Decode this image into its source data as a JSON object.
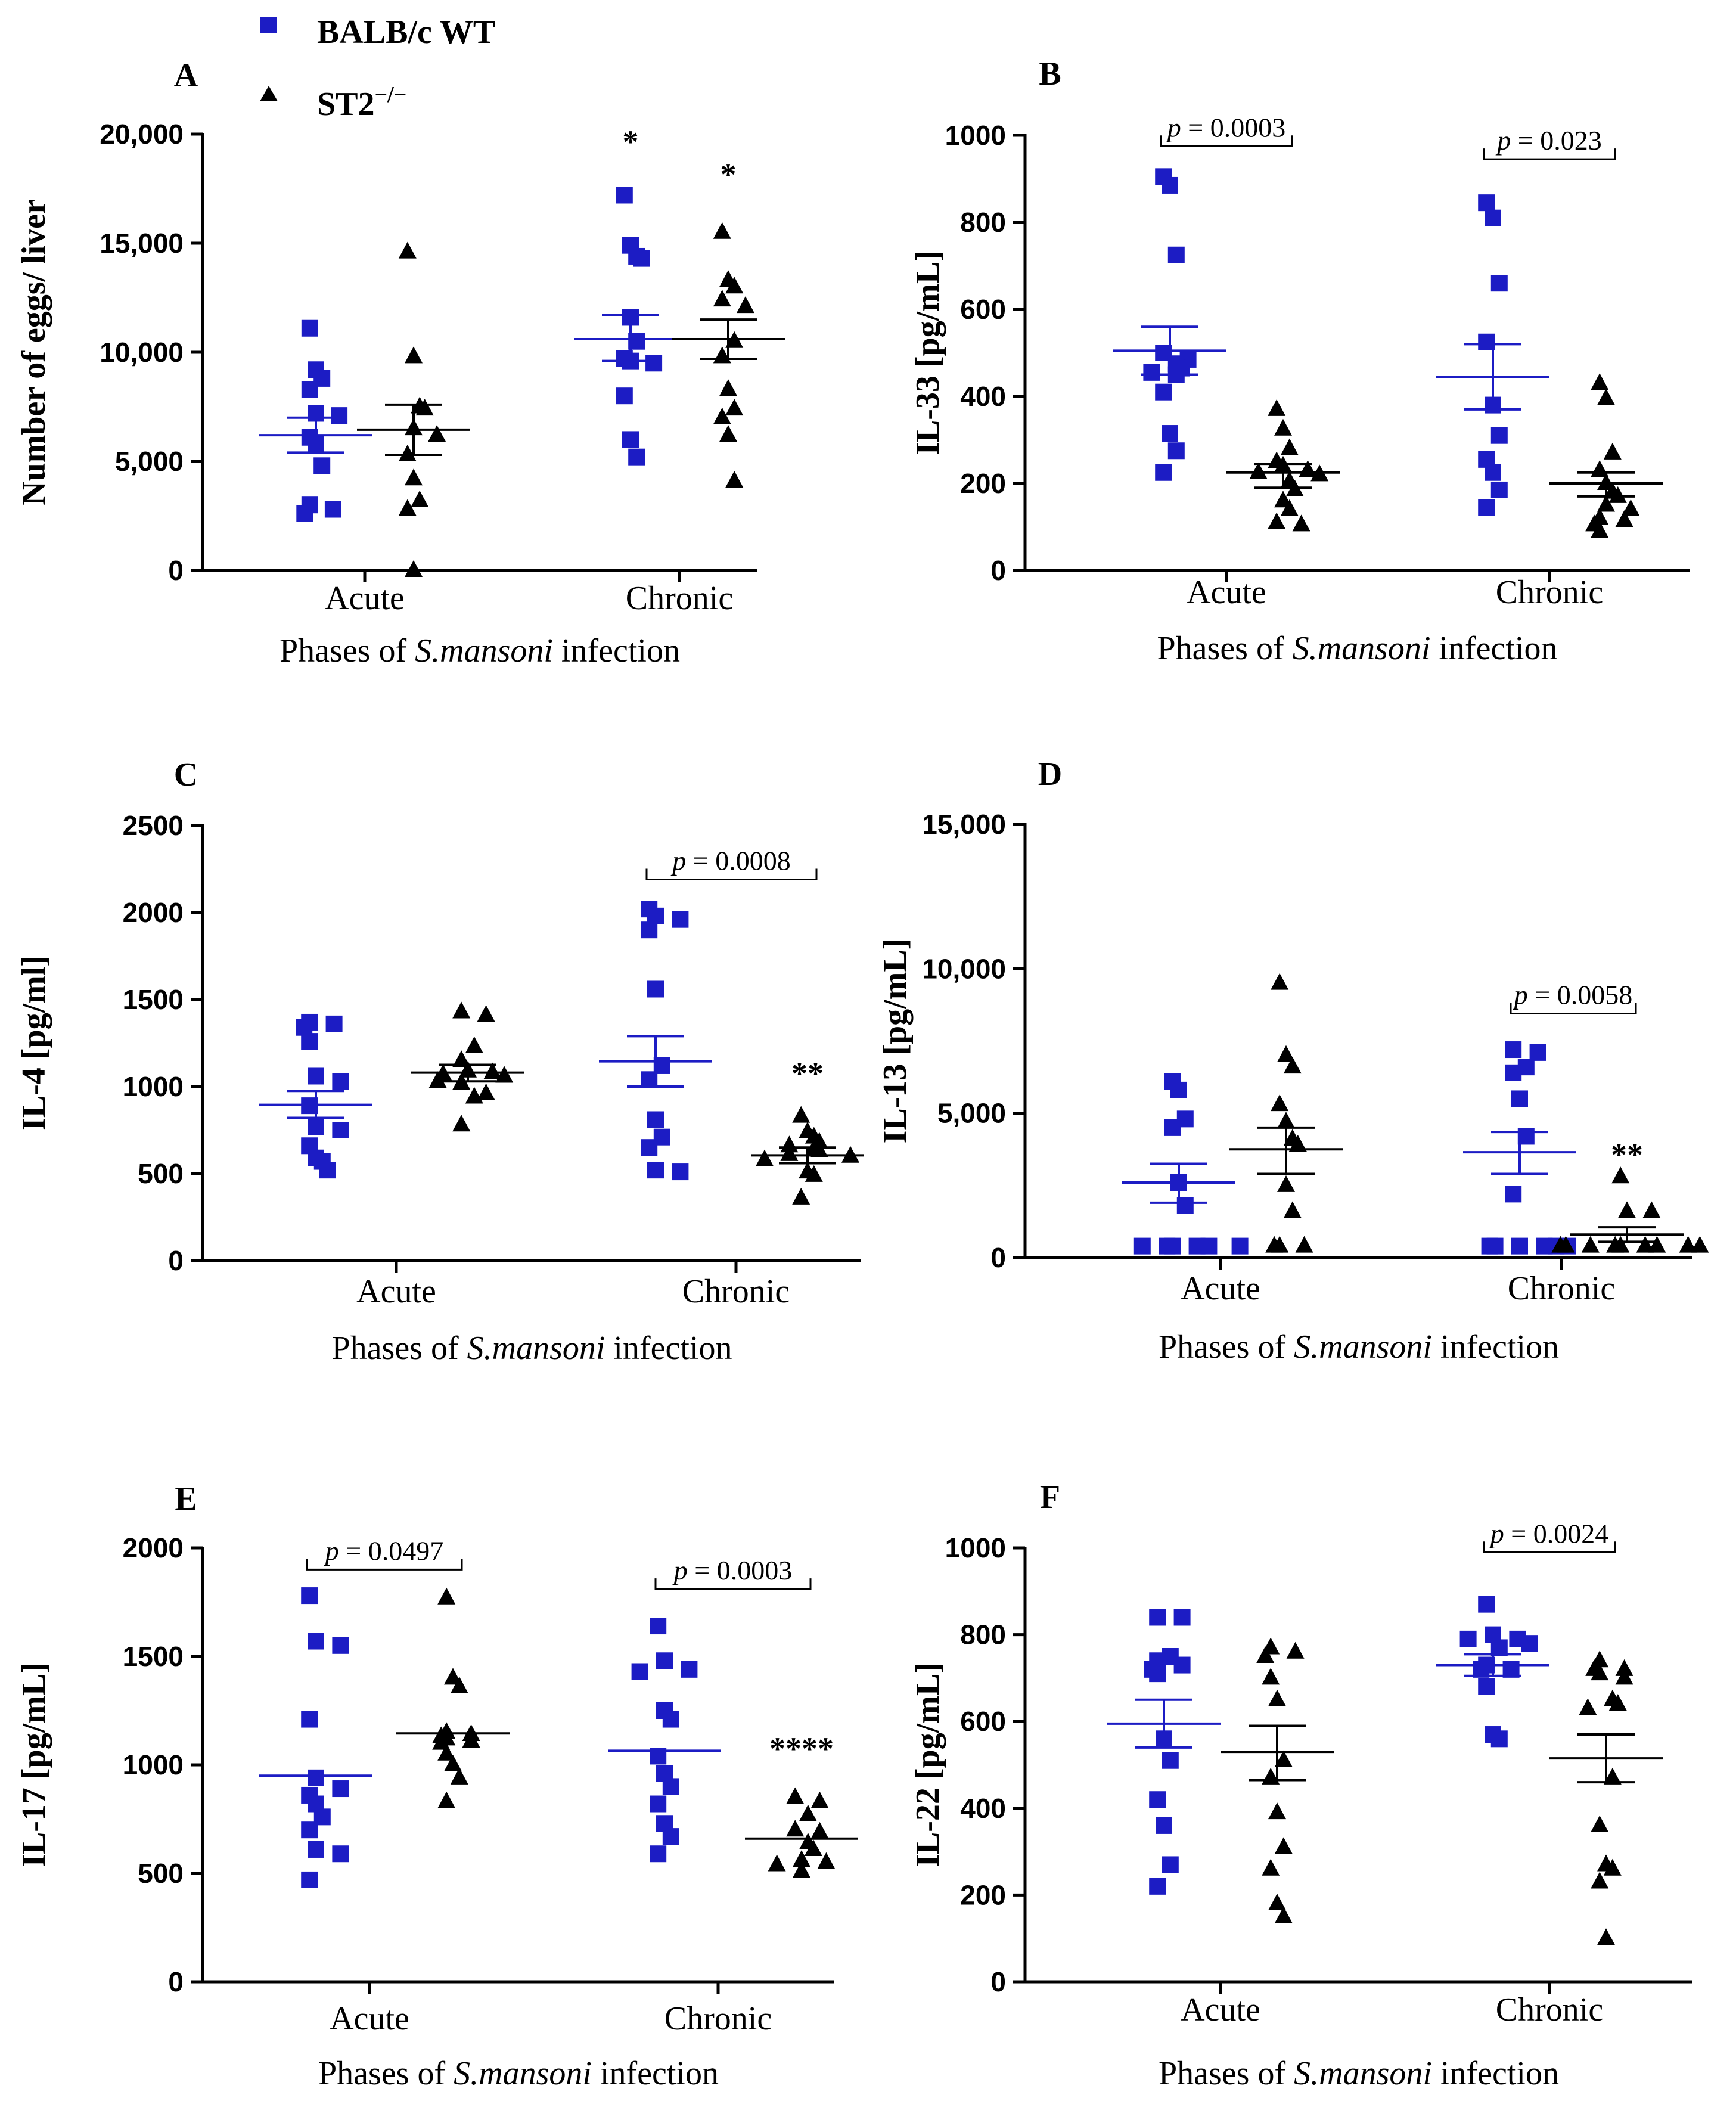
{
  "colors": {
    "wt": "#1c1cc4",
    "ko": "#000000",
    "axis": "#000000"
  },
  "legend": {
    "entries": [
      {
        "label": "BALB/c WT",
        "marker": "square",
        "color": "#1c1cc4"
      },
      {
        "label_base": "ST2",
        "label_sup": "−/−",
        "marker": "triangle",
        "color": "#000000"
      }
    ]
  },
  "chart_data": [
    {
      "type": "scatter",
      "letter": "A",
      "ylabel": "Number of eggs/ liver",
      "xlabel_pre": "Phases of ",
      "xlabel_italic": "S.mansoni",
      "xlabel_post": " infection",
      "categories": [
        "Acute",
        "Chronic"
      ],
      "ylim": [
        0,
        20000
      ],
      "yticks": [
        0,
        5000,
        10000,
        15000,
        20000
      ],
      "yticklabels": [
        "0",
        "5,000",
        "10,000",
        "15,000",
        "20,000"
      ],
      "series": [
        {
          "name": "BALB/c WT",
          "values": {
            "Acute": [
              11100,
              9200,
              8800,
              8300,
              7200,
              7100,
              6100,
              5800,
              4800,
              3000,
              2800,
              2600
            ],
            "Chronic": [
              17200,
              14900,
              14400,
              14300,
              11600,
              10500,
              9700,
              9600,
              9500,
              8000,
              6000,
              5200
            ]
          },
          "mean": {
            "Acute": 6200,
            "Chronic": 10600
          },
          "sem_bar": {
            "Acute": [
              5400,
              7000
            ],
            "Chronic": [
              9600,
              11700
            ]
          }
        },
        {
          "name": "ST2−/−",
          "values": {
            "Acute": [
              14600,
              9800,
              7500,
              7400,
              6500,
              6200,
              5300,
              4200,
              3200,
              2800,
              0
            ],
            "Chronic": [
              15500,
              13300,
              13000,
              12400,
              12100,
              10500,
              9800,
              8300,
              7400,
              7000,
              6200,
              4100
            ]
          },
          "mean": {
            "Acute": 6450,
            "Chronic": 10600
          },
          "sem_bar": {
            "Acute": [
              5300,
              7600
            ],
            "Chronic": [
              9700,
              11500
            ]
          }
        }
      ],
      "brackets": [],
      "stars": [
        {
          "text": "*",
          "category": "Chronic",
          "series": 0,
          "y": 19700
        },
        {
          "text": "*",
          "category": "Chronic",
          "series": 1,
          "y": 18200
        }
      ]
    },
    {
      "type": "scatter",
      "letter": "B",
      "ylabel": "IL-33 [pg/mL]",
      "xlabel_pre": "Phases of ",
      "xlabel_italic": "S.mansoni",
      "xlabel_post": " infection",
      "categories": [
        "Acute",
        "Chronic"
      ],
      "ylim": [
        0,
        1000
      ],
      "yticks": [
        0,
        200,
        400,
        600,
        800,
        1000
      ],
      "yticklabels": [
        "0",
        "200",
        "400",
        "600",
        "800",
        "1000"
      ],
      "series": [
        {
          "name": "BALB/c WT",
          "values": {
            "Acute": [
              905,
              885,
              725,
              500,
              485,
              475,
              465,
              455,
              450,
              410,
              315,
              275,
              225
            ],
            "Chronic": [
              845,
              810,
              660,
              525,
              380,
              310,
              255,
              225,
              185,
              145
            ]
          },
          "mean": {
            "Acute": 505,
            "Chronic": 445
          },
          "sem_bar": {
            "Acute": [
              450,
              560
            ],
            "Chronic": [
              370,
              520
            ]
          }
        },
        {
          "name": "ST2−/−",
          "values": {
            "Acute": [
              370,
              325,
              280,
              250,
              240,
              230,
              225,
              220,
              205,
              185,
              160,
              140,
              110,
              105
            ],
            "Chronic": [
              430,
              395,
              270,
              230,
              200,
              180,
              170,
              150,
              140,
              120,
              115,
              105,
              90
            ]
          },
          "mean": {
            "Acute": 225,
            "Chronic": 200
          },
          "sem_bar": {
            "Acute": [
              190,
              245
            ],
            "Chronic": [
              170,
              225
            ]
          }
        }
      ],
      "brackets": [
        {
          "category": "Acute",
          "y": 975,
          "label": "0.0003"
        },
        {
          "category": "Chronic",
          "y": 945,
          "label": "0.023"
        }
      ],
      "stars": []
    },
    {
      "type": "scatter",
      "letter": "C",
      "ylabel": "IL-4 [pg/ml]",
      "xlabel_pre": "Phases of ",
      "xlabel_italic": "S.mansoni",
      "xlabel_post": " infection",
      "categories": [
        "Acute",
        "Chronic"
      ],
      "ylim": [
        0,
        2500
      ],
      "yticks": [
        0,
        500,
        1000,
        1500,
        2000,
        2500
      ],
      "yticklabels": [
        "0",
        "500",
        "1000",
        "1500",
        "2000",
        "2500"
      ],
      "series": [
        {
          "name": "BALB/c WT",
          "values": {
            "Acute": [
              1370,
              1360,
              1340,
              1260,
              1060,
              1030,
              890,
              770,
              750,
              660,
              590,
              570,
              520
            ],
            "Chronic": [
              2020,
              1980,
              1960,
              1900,
              1560,
              1120,
              1040,
              810,
              710,
              650,
              520,
              510
            ]
          },
          "mean": {
            "Acute": 895,
            "Chronic": 1145
          },
          "sem_bar": {
            "Acute": [
              820,
              975
            ],
            "Chronic": [
              1000,
              1290
            ]
          }
        },
        {
          "name": "ST2−/−",
          "values": {
            "Acute": [
              1430,
              1410,
              1230,
              1150,
              1090,
              1080,
              1070,
              1060,
              1030,
              1020,
              960,
              940,
              780
            ],
            "Chronic": [
              830,
              740,
              710,
              680,
              660,
              640,
              630,
              610,
              600,
              580,
              510,
              490,
              360
            ]
          },
          "mean": {
            "Acute": 1080,
            "Chronic": 605
          },
          "sem_bar": {
            "Acute": [
              1030,
              1125
            ],
            "Chronic": [
              560,
              650
            ]
          }
        }
      ],
      "brackets": [
        {
          "category": "Chronic",
          "y": 2190,
          "label": "0.0008"
        }
      ],
      "stars": [
        {
          "text": "**",
          "category": "Chronic",
          "series": 1,
          "y": 1080
        }
      ]
    },
    {
      "type": "scatter",
      "letter": "D",
      "ylabel": "IL-13 [pg/mL]",
      "xlabel_pre": "Phases of ",
      "xlabel_italic": "S.mansoni",
      "xlabel_post": " infection",
      "categories": [
        "Acute",
        "Chronic"
      ],
      "ylim": [
        0,
        15000
      ],
      "yticks": [
        0,
        5000,
        10000,
        15000
      ],
      "yticklabels": [
        "0",
        "5,000",
        "10,000",
        "15,000"
      ],
      "series": [
        {
          "name": "BALB/c WT",
          "values": {
            "Acute": [
              6100,
              5800,
              4800,
              4500,
              2600,
              1800,
              400,
              400,
              400,
              400,
              400,
              400
            ],
            "Chronic": [
              7200,
              7100,
              6600,
              6400,
              5500,
              4200,
              2200,
              400,
              400,
              400,
              400,
              400,
              400
            ]
          },
          "mean": {
            "Acute": 2600,
            "Chronic": 3650
          },
          "sem_bar": {
            "Acute": [
              1900,
              3250
            ],
            "Chronic": [
              2900,
              4350
            ]
          }
        },
        {
          "name": "ST2−/−",
          "values": {
            "Acute": [
              9500,
              7000,
              6600,
              5300,
              4700,
              4100,
              3900,
              2500,
              1600,
              400,
              400,
              400
            ],
            "Chronic": [
              2800,
              1600,
              1600,
              400,
              400,
              400,
              400,
              400,
              400,
              400,
              400,
              400
            ]
          },
          "mean": {
            "Acute": 3750,
            "Chronic": 800
          },
          "sem_bar": {
            "Acute": [
              2900,
              4500
            ],
            "Chronic": [
              550,
              1050
            ]
          }
        }
      ],
      "brackets": [
        {
          "category": "Chronic",
          "y": 8450,
          "label": "0.0058"
        }
      ],
      "stars": [
        {
          "text": "**",
          "category": "Chronic",
          "series": 1,
          "y": 3600
        }
      ]
    },
    {
      "type": "scatter",
      "letter": "E",
      "ylabel": "IL-17 [pg/mL]",
      "xlabel_pre": "Phases of ",
      "xlabel_italic": "S.mansoni",
      "xlabel_post": " infection",
      "categories": [
        "Acute",
        "Chronic"
      ],
      "ylim": [
        0,
        2000
      ],
      "yticks": [
        0,
        500,
        1000,
        1500,
        2000
      ],
      "yticklabels": [
        "0",
        "500",
        "1000",
        "1500",
        "2000"
      ],
      "series": [
        {
          "name": "BALB/c WT",
          "values": {
            "Acute": [
              1780,
              1570,
              1550,
              1210,
              940,
              890,
              860,
              820,
              760,
              700,
              610,
              590,
              470
            ],
            "Chronic": [
              1640,
              1480,
              1440,
              1430,
              1250,
              1210,
              1040,
              960,
              900,
              820,
              730,
              670,
              590
            ]
          },
          "mean": {
            "Acute": 950,
            "Chronic": 1065
          },
          "sem_bar": {
            "Acute": [
              950,
              950
            ],
            "Chronic": [
              1065,
              1065
            ]
          }
        },
        {
          "name": "ST2−/−",
          "values": {
            "Acute": [
              1770,
              1400,
              1360,
              1150,
              1140,
              1130,
              1120,
              1110,
              1100,
              1050,
              1000,
              940,
              830
            ],
            "Chronic": [
              850,
              830,
              770,
              700,
              690,
              640,
              610,
              560,
              550,
              540,
              510
            ]
          },
          "mean": {
            "Acute": 1145,
            "Chronic": 660
          },
          "sem_bar": {
            "Acute": [
              1145,
              1145
            ],
            "Chronic": [
              660,
              660
            ]
          }
        }
      ],
      "brackets": [
        {
          "category": "Acute",
          "y": 1900,
          "label": "0.0497"
        },
        {
          "category": "Chronic",
          "y": 1810,
          "label": "0.0003"
        }
      ],
      "stars": [
        {
          "text": "****",
          "category": "Chronic",
          "series": 1,
          "y": 1080
        }
      ]
    },
    {
      "type": "scatter",
      "letter": "F",
      "ylabel": "IL-22 [pg/mL]",
      "xlabel_pre": "Phases of ",
      "xlabel_italic": "S.mansoni",
      "xlabel_post": " infection",
      "categories": [
        "Acute",
        "Chronic"
      ],
      "ylim": [
        0,
        1000
      ],
      "yticks": [
        0,
        200,
        400,
        600,
        800,
        1000
      ],
      "yticklabels": [
        "0",
        "200",
        "400",
        "600",
        "800",
        "1000"
      ],
      "series": [
        {
          "name": "BALB/c WT",
          "values": {
            "Acute": [
              840,
              840,
              750,
              740,
              730,
              720,
              710,
              560,
              510,
              420,
              360,
              270,
              220
            ],
            "Chronic": [
              870,
              800,
              790,
              790,
              780,
              770,
              730,
              720,
              720,
              680,
              570,
              560
            ]
          },
          "mean": {
            "Acute": 595,
            "Chronic": 730
          },
          "sem_bar": {
            "Acute": [
              540,
              650
            ],
            "Chronic": [
              705,
              755
            ]
          }
        },
        {
          "name": "ST2−/−",
          "values": {
            "Acute": [
              770,
              760,
              750,
              700,
              650,
              510,
              470,
              390,
              310,
              260,
              180,
              150
            ],
            "Chronic": [
              740,
              720,
              720,
              710,
              700,
              650,
              640,
              630,
              470,
              360,
              270,
              260,
              230,
              100
            ]
          },
          "mean": {
            "Acute": 530,
            "Chronic": 515
          },
          "sem_bar": {
            "Acute": [
              465,
              590
            ],
            "Chronic": [
              460,
              570
            ]
          }
        }
      ],
      "brackets": [
        {
          "category": "Chronic",
          "y": 990,
          "label": "0.0024"
        }
      ],
      "stars": []
    }
  ]
}
